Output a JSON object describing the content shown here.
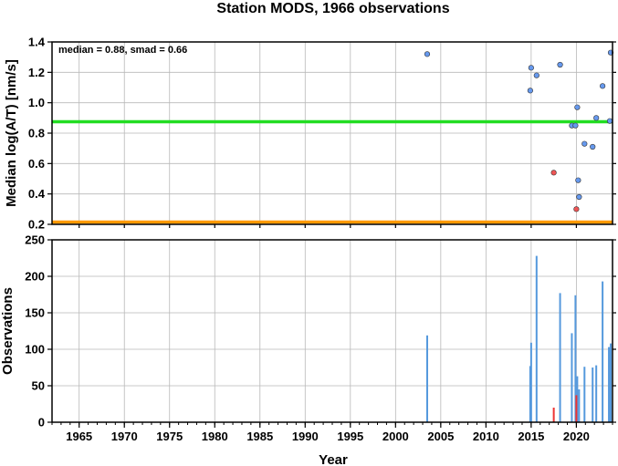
{
  "title": "Station MODS, 1966 observations",
  "chart_data": [
    {
      "type": "scatter",
      "ylabel": "Median log(A/T) [nm/s]",
      "annotation": "median = 0.88, smad = 0.66",
      "xlim": [
        1962,
        2024
      ],
      "ylim": [
        0.2,
        1.4
      ],
      "yticks": [
        0.2,
        0.4,
        0.6,
        0.8,
        1.0,
        1.2,
        1.4
      ],
      "ytick_labels": [
        "0.2",
        "0.4",
        "0.6",
        "0.8",
        "1.0",
        "1.2",
        "1.4"
      ],
      "grid": true,
      "hlines": [
        {
          "y": 0.875,
          "color": "#22dd22"
        },
        {
          "y": 0.215,
          "color": "#ff9900"
        }
      ],
      "series": [
        {
          "color": "#6699ee",
          "points": [
            [
              2003.5,
              1.32
            ],
            [
              2014.9,
              1.08
            ],
            [
              2015.0,
              1.23
            ],
            [
              2015.6,
              1.18
            ],
            [
              2018.2,
              1.25
            ],
            [
              2019.5,
              0.85
            ],
            [
              2019.9,
              0.85
            ],
            [
              2020.1,
              0.97
            ],
            [
              2020.2,
              0.49
            ],
            [
              2020.3,
              0.38
            ],
            [
              2020.9,
              0.73
            ],
            [
              2021.8,
              0.71
            ],
            [
              2022.2,
              0.9
            ],
            [
              2022.9,
              1.11
            ],
            [
              2023.7,
              0.88
            ],
            [
              2023.8,
              1.33
            ]
          ]
        },
        {
          "color": "#ee5555",
          "points": [
            [
              2017.5,
              0.54
            ],
            [
              2020.0,
              0.3
            ]
          ]
        }
      ]
    },
    {
      "type": "bar",
      "xlabel": "Year",
      "ylabel": "Observations",
      "xlim": [
        1962,
        2024
      ],
      "ylim": [
        0,
        250
      ],
      "xticks": [
        1965,
        1970,
        1975,
        1980,
        1985,
        1990,
        1995,
        2000,
        2005,
        2010,
        2015,
        2020
      ],
      "xtick_labels": [
        "1965",
        "1970",
        "1975",
        "1980",
        "1985",
        "1990",
        "1995",
        "2000",
        "2005",
        "2010",
        "2015",
        "2020"
      ],
      "yticks": [
        0,
        50,
        100,
        150,
        200,
        250
      ],
      "ytick_labels": [
        "0",
        "50",
        "100",
        "150",
        "200",
        "250"
      ],
      "grid": true,
      "series": [
        {
          "color": "#5599dd",
          "points": [
            [
              2003.5,
              119
            ],
            [
              2014.9,
              77
            ],
            [
              2015.0,
              109
            ],
            [
              2015.6,
              228
            ],
            [
              2018.2,
              177
            ],
            [
              2019.5,
              122
            ],
            [
              2019.9,
              174
            ],
            [
              2020.1,
              63
            ],
            [
              2020.3,
              45
            ],
            [
              2020.9,
              76
            ],
            [
              2021.8,
              75
            ],
            [
              2022.2,
              78
            ],
            [
              2022.9,
              193
            ],
            [
              2023.6,
              103
            ],
            [
              2023.8,
              108
            ]
          ]
        },
        {
          "color": "#ee3333",
          "points": [
            [
              2017.5,
              20
            ],
            [
              2020.0,
              37
            ]
          ]
        }
      ]
    }
  ]
}
